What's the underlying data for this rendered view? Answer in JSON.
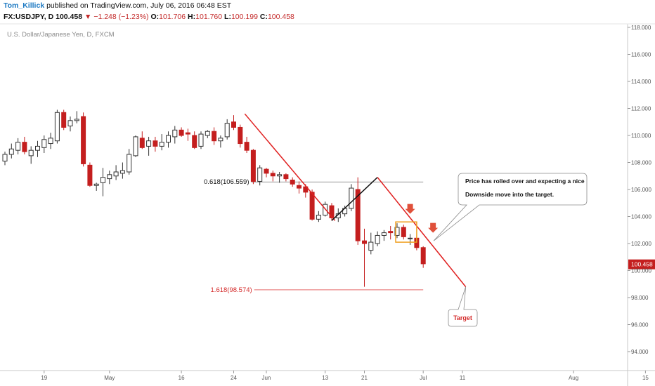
{
  "header": {
    "author": "Tom_Killick",
    "published": " published on TradingView.com, July 06, 2016 06:48 EST",
    "symbol": "FX:USDJPY, D",
    "last": "100.458",
    "change": "−1.248 (−1.23%)",
    "o_label": "O:",
    "o": "101.706",
    "h_label": "H:",
    "h": "101.760",
    "l_label": "L:",
    "l": "100.199",
    "c_label": "C:",
    "c": "100.458"
  },
  "colors": {
    "up": "#ffffff",
    "down": "#c41e1e",
    "trend": "#e02020",
    "box": "#f0a020",
    "arrow": "#e0503a"
  },
  "chart_data": {
    "type": "candlestick",
    "title": "U.S. Dollar/Japanese Yen, D, FXCM",
    "ylim": [
      92.8,
      118.3
    ],
    "yticks": [
      94,
      96,
      98,
      100,
      102,
      104,
      106,
      108,
      110,
      112,
      114,
      116,
      118
    ],
    "ytick_labels": [
      "94.000",
      "96.000",
      "98.000",
      "100.000",
      "102.000",
      "104.000",
      "106.000",
      "108.000",
      "110.000",
      "112.000",
      "114.000",
      "116.000",
      "118.000"
    ],
    "xlim": [
      0,
      98
    ],
    "xticks": [
      {
        "label": "19",
        "x": 6
      },
      {
        "label": "May",
        "x": 16
      },
      {
        "label": "16",
        "x": 27
      },
      {
        "label": "24",
        "x": 35
      },
      {
        "label": "Jun",
        "x": 40
      },
      {
        "label": "13",
        "x": 49
      },
      {
        "label": "21",
        "x": 55
      },
      {
        "label": "Jul",
        "x": 64
      },
      {
        "label": "11",
        "x": 70
      },
      {
        "label": "Aug",
        "x": 87
      },
      {
        "label": "15",
        "x": 98
      }
    ],
    "last_price": "100.458",
    "candles": [
      {
        "o": 108.1,
        "h": 108.8,
        "l": 107.8,
        "c": 108.6
      },
      {
        "o": 108.6,
        "h": 109.4,
        "l": 108.3,
        "c": 109.0
      },
      {
        "o": 108.9,
        "h": 109.8,
        "l": 108.6,
        "c": 109.5
      },
      {
        "o": 109.5,
        "h": 109.9,
        "l": 108.6,
        "c": 108.8
      },
      {
        "o": 108.5,
        "h": 109.2,
        "l": 107.9,
        "c": 108.9
      },
      {
        "o": 108.9,
        "h": 109.6,
        "l": 108.4,
        "c": 109.2
      },
      {
        "o": 109.1,
        "h": 110.0,
        "l": 108.7,
        "c": 109.7
      },
      {
        "o": 109.4,
        "h": 110.2,
        "l": 109.0,
        "c": 109.8
      },
      {
        "o": 109.6,
        "h": 111.9,
        "l": 109.4,
        "c": 111.7
      },
      {
        "o": 111.7,
        "h": 111.9,
        "l": 110.4,
        "c": 110.6
      },
      {
        "o": 110.7,
        "h": 111.4,
        "l": 110.3,
        "c": 111.1
      },
      {
        "o": 111.1,
        "h": 111.8,
        "l": 110.9,
        "c": 111.2
      },
      {
        "o": 111.4,
        "h": 111.7,
        "l": 107.7,
        "c": 107.9
      },
      {
        "o": 107.8,
        "h": 108.0,
        "l": 106.2,
        "c": 106.3
      },
      {
        "o": 106.3,
        "h": 106.5,
        "l": 105.9,
        "c": 106.4
      },
      {
        "o": 106.5,
        "h": 107.6,
        "l": 105.5,
        "c": 106.9
      },
      {
        "o": 106.8,
        "h": 107.4,
        "l": 106.4,
        "c": 107.1
      },
      {
        "o": 107.0,
        "h": 107.8,
        "l": 106.7,
        "c": 107.3
      },
      {
        "o": 107.2,
        "h": 108.0,
        "l": 106.8,
        "c": 107.4
      },
      {
        "o": 107.3,
        "h": 109.0,
        "l": 107.1,
        "c": 108.6
      },
      {
        "o": 108.5,
        "h": 110.0,
        "l": 108.4,
        "c": 109.9
      },
      {
        "o": 109.8,
        "h": 110.3,
        "l": 109.0,
        "c": 109.1
      },
      {
        "o": 109.2,
        "h": 109.9,
        "l": 108.5,
        "c": 109.6
      },
      {
        "o": 109.6,
        "h": 109.9,
        "l": 108.8,
        "c": 109.2
      },
      {
        "o": 109.2,
        "h": 110.1,
        "l": 108.9,
        "c": 109.5
      },
      {
        "o": 109.5,
        "h": 110.3,
        "l": 109.1,
        "c": 110.0
      },
      {
        "o": 109.9,
        "h": 110.7,
        "l": 109.4,
        "c": 110.4
      },
      {
        "o": 110.4,
        "h": 110.6,
        "l": 109.9,
        "c": 110.0
      },
      {
        "o": 110.2,
        "h": 110.5,
        "l": 109.6,
        "c": 110.1
      },
      {
        "o": 110.0,
        "h": 110.3,
        "l": 109.0,
        "c": 109.1
      },
      {
        "o": 109.2,
        "h": 110.3,
        "l": 109.0,
        "c": 110.1
      },
      {
        "o": 110.0,
        "h": 110.4,
        "l": 109.8,
        "c": 110.3
      },
      {
        "o": 110.3,
        "h": 110.6,
        "l": 109.3,
        "c": 109.6
      },
      {
        "o": 109.6,
        "h": 110.0,
        "l": 109.1,
        "c": 109.8
      },
      {
        "o": 109.9,
        "h": 111.2,
        "l": 109.7,
        "c": 110.9
      },
      {
        "o": 111.0,
        "h": 111.5,
        "l": 110.4,
        "c": 110.6
      },
      {
        "o": 110.6,
        "h": 110.8,
        "l": 109.1,
        "c": 109.4
      },
      {
        "o": 109.5,
        "h": 109.9,
        "l": 108.7,
        "c": 108.9
      },
      {
        "o": 108.9,
        "h": 109.0,
        "l": 106.4,
        "c": 106.6
      },
      {
        "o": 106.6,
        "h": 107.8,
        "l": 106.3,
        "c": 107.6
      },
      {
        "o": 107.5,
        "h": 107.6,
        "l": 106.9,
        "c": 107.2
      },
      {
        "o": 107.2,
        "h": 107.4,
        "l": 106.6,
        "c": 107.0
      },
      {
        "o": 107.0,
        "h": 107.3,
        "l": 106.5,
        "c": 107.1
      },
      {
        "o": 107.1,
        "h": 107.2,
        "l": 106.6,
        "c": 106.8
      },
      {
        "o": 106.7,
        "h": 106.9,
        "l": 106.2,
        "c": 106.4
      },
      {
        "o": 106.3,
        "h": 106.6,
        "l": 105.7,
        "c": 106.1
      },
      {
        "o": 106.2,
        "h": 106.4,
        "l": 105.4,
        "c": 105.8
      },
      {
        "o": 105.8,
        "h": 106.0,
        "l": 103.7,
        "c": 103.8
      },
      {
        "o": 103.8,
        "h": 104.4,
        "l": 103.6,
        "c": 104.1
      },
      {
        "o": 104.1,
        "h": 105.1,
        "l": 104.0,
        "c": 104.9
      },
      {
        "o": 104.8,
        "h": 105.0,
        "l": 103.7,
        "c": 103.9
      },
      {
        "o": 103.9,
        "h": 104.6,
        "l": 103.6,
        "c": 104.2
      },
      {
        "o": 104.2,
        "h": 104.8,
        "l": 104.0,
        "c": 104.6
      },
      {
        "o": 104.6,
        "h": 106.4,
        "l": 104.4,
        "c": 106.1
      },
      {
        "o": 106.0,
        "h": 106.9,
        "l": 101.9,
        "c": 102.2
      },
      {
        "o": 102.2,
        "h": 103.1,
        "l": 98.8,
        "c": 102.0
      },
      {
        "o": 101.5,
        "h": 102.8,
        "l": 101.2,
        "c": 102.1
      },
      {
        "o": 102.0,
        "h": 102.9,
        "l": 101.8,
        "c": 102.6
      },
      {
        "o": 102.6,
        "h": 103.0,
        "l": 102.2,
        "c": 102.8
      },
      {
        "o": 102.9,
        "h": 103.3,
        "l": 102.3,
        "c": 102.8
      },
      {
        "o": 102.6,
        "h": 103.5,
        "l": 102.4,
        "c": 103.2
      },
      {
        "o": 103.2,
        "h": 103.4,
        "l": 102.3,
        "c": 102.5
      },
      {
        "o": 102.4,
        "h": 102.7,
        "l": 101.9,
        "c": 102.4
      },
      {
        "o": 102.4,
        "h": 102.6,
        "l": 101.5,
        "c": 101.7
      },
      {
        "o": 101.7,
        "h": 101.8,
        "l": 100.2,
        "c": 100.5
      }
    ],
    "annotations": {
      "fib_0618": {
        "label": "0.618(106.559)",
        "value": 106.559,
        "x_start": 35,
        "x_end": 64
      },
      "fib_1618": {
        "label": "1.618(98.574)",
        "value": 98.574,
        "x_start": 39,
        "x_end": 64
      },
      "note_lines": [
        "Price has rolled over and expecting a nice",
        "Downside move into the target."
      ],
      "target_label": "Target",
      "down_trendline": [
        {
          "x": 36.7,
          "y": 111.6
        },
        {
          "x": 70.5,
          "y": 98.8
        }
      ],
      "zigzag": [
        {
          "x": 50,
          "y": 103.7
        },
        {
          "x": 57,
          "y": 106.9
        },
        {
          "x": 64,
          "y": 101.8
        }
      ],
      "red_path": [
        {
          "x": 36.7,
          "y": 111.6
        },
        {
          "x": 50.5,
          "y": 103.7
        }
      ],
      "arrows_at": [
        {
          "x": 62,
          "y": 104.2
        },
        {
          "x": 65.5,
          "y": 102.8
        }
      ],
      "box": {
        "x0": 60,
        "x1": 63,
        "y0": 102.1,
        "y1": 103.6
      }
    }
  }
}
